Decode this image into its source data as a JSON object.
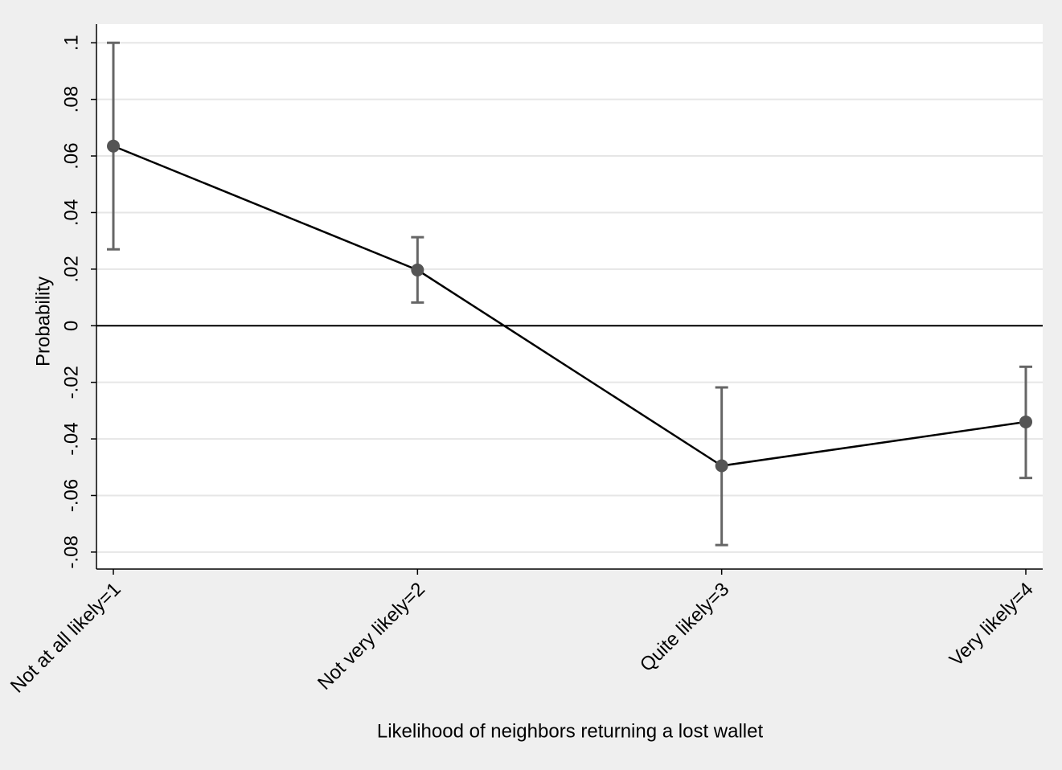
{
  "chart_data": {
    "type": "line",
    "x_label": "Likelihood of neighbors returning a lost wallet",
    "y_label": "Probability",
    "categories": [
      "Not at all likely=1",
      "Not very likely=2",
      "Quite likely=3",
      "Very likely=4"
    ],
    "values": [
      0.0635,
      0.0197,
      -0.0495,
      -0.034
    ],
    "ci_low": [
      0.027,
      0.0082,
      -0.0775,
      -0.0538
    ],
    "ci_high": [
      0.1,
      0.0313,
      -0.0218,
      -0.0145
    ],
    "line_color": "#000000",
    "marker_color": "#555555",
    "error_color": "#666666",
    "reference_line": 0,
    "ylim": [
      -0.086,
      0.1066
    ],
    "yticks": [
      {
        "value": -0.08,
        "label": "-.08"
      },
      {
        "value": -0.06,
        "label": "-.06"
      },
      {
        "value": -0.04,
        "label": "-.04"
      },
      {
        "value": -0.02,
        "label": "-.02"
      },
      0,
      {
        "value": 0.02,
        "label": ".02"
      },
      {
        "value": 0.04,
        "label": ".04"
      },
      {
        "value": 0.06,
        "label": ".06"
      },
      {
        "value": 0.08,
        "label": ".08"
      },
      {
        "value": 0.1,
        "label": ".1"
      }
    ],
    "grid": true
  }
}
